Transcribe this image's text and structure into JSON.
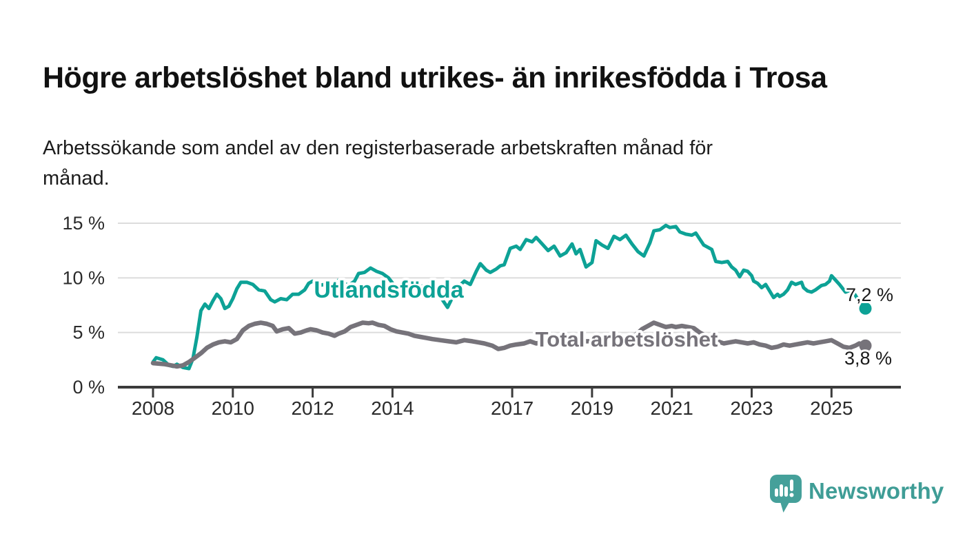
{
  "header": {
    "title": "Högre arbetslöshet bland utrikes- än inrikesfödda i Trosa",
    "subtitle": "Arbetssökande som andel av den registerbaserade arbetskraften månad för\nmånad."
  },
  "footer": {
    "brand": "Newsworthy",
    "brand_color": "#3f9d96",
    "logo_bubble_color": "#45a09a"
  },
  "chart_data": {
    "type": "line",
    "title": "Högre arbetslöshet bland utrikes- än inrikesfödda i Trosa",
    "xlabel": "",
    "ylabel": "Arbetssökande som andel av den registerbaserade arbetskraften",
    "ylim": [
      0,
      15
    ],
    "x_range": [
      2008.0,
      2025.85
    ],
    "grid": true,
    "legend_position": "inline-labels",
    "y_tick_suffix": " %",
    "y_ticks": [
      {
        "value": 0,
        "label": "0 %"
      },
      {
        "value": 5,
        "label": "5 %"
      },
      {
        "value": 10,
        "label": "10 %"
      },
      {
        "value": 15,
        "label": "15 %"
      }
    ],
    "x_ticks": [
      {
        "value": 2008,
        "label": "2008"
      },
      {
        "value": 2010,
        "label": "2010"
      },
      {
        "value": 2012,
        "label": "2012"
      },
      {
        "value": 2014,
        "label": "2014"
      },
      {
        "value": 2017,
        "label": "2017"
      },
      {
        "value": 2019,
        "label": "2019"
      },
      {
        "value": 2021,
        "label": "2021"
      },
      {
        "value": 2023,
        "label": "2023"
      },
      {
        "value": 2025,
        "label": "2025"
      }
    ],
    "series": [
      {
        "name": "Utlandsfödda",
        "color": "#0da296",
        "line_width": 5,
        "end_label": "7,2 %",
        "last_value": 7.2,
        "points": [
          [
            2008.0,
            2.3
          ],
          [
            2008.08,
            2.7
          ],
          [
            2008.25,
            2.5
          ],
          [
            2008.4,
            2.0
          ],
          [
            2008.5,
            1.9
          ],
          [
            2008.6,
            2.1
          ],
          [
            2008.75,
            1.8
          ],
          [
            2008.9,
            1.7
          ],
          [
            2009.0,
            2.6
          ],
          [
            2009.1,
            4.6
          ],
          [
            2009.2,
            7.0
          ],
          [
            2009.3,
            7.6
          ],
          [
            2009.4,
            7.2
          ],
          [
            2009.5,
            7.9
          ],
          [
            2009.6,
            8.5
          ],
          [
            2009.7,
            8.1
          ],
          [
            2009.8,
            7.2
          ],
          [
            2009.9,
            7.4
          ],
          [
            2010.0,
            8.1
          ],
          [
            2010.1,
            9.0
          ],
          [
            2010.2,
            9.6
          ],
          [
            2010.35,
            9.6
          ],
          [
            2010.5,
            9.4
          ],
          [
            2010.65,
            8.9
          ],
          [
            2010.8,
            8.8
          ],
          [
            2010.95,
            8.0
          ],
          [
            2011.05,
            7.8
          ],
          [
            2011.2,
            8.1
          ],
          [
            2011.35,
            8.0
          ],
          [
            2011.5,
            8.5
          ],
          [
            2011.65,
            8.5
          ],
          [
            2011.8,
            8.9
          ],
          [
            2011.9,
            9.5
          ],
          [
            2012.0,
            9.7
          ],
          [
            2012.15,
            9.3
          ],
          [
            2012.3,
            9.4
          ],
          [
            2012.45,
            8.9
          ],
          [
            2012.55,
            9.1
          ],
          [
            2012.65,
            9.8
          ],
          [
            2012.8,
            9.5
          ],
          [
            2012.9,
            9.3
          ],
          [
            2013.05,
            9.7
          ],
          [
            2013.15,
            10.4
          ],
          [
            2013.3,
            10.5
          ],
          [
            2013.45,
            10.9
          ],
          [
            2013.6,
            10.6
          ],
          [
            2013.75,
            10.4
          ],
          [
            2013.9,
            10.0
          ],
          [
            2014.05,
            9.3
          ],
          [
            2014.2,
            9.0
          ],
          [
            2014.35,
            9.2
          ],
          [
            2014.5,
            9.5
          ],
          [
            2014.65,
            9.1
          ],
          [
            2014.8,
            9.3
          ],
          [
            2014.95,
            9.5
          ],
          [
            2015.1,
            8.7
          ],
          [
            2015.25,
            8.0
          ],
          [
            2015.38,
            7.3
          ],
          [
            2015.5,
            8.2
          ],
          [
            2015.65,
            9.2
          ],
          [
            2015.8,
            9.7
          ],
          [
            2015.95,
            9.4
          ],
          [
            2016.1,
            10.6
          ],
          [
            2016.2,
            11.3
          ],
          [
            2016.35,
            10.7
          ],
          [
            2016.45,
            10.5
          ],
          [
            2016.6,
            10.8
          ],
          [
            2016.7,
            11.1
          ],
          [
            2016.8,
            11.2
          ],
          [
            2016.95,
            12.7
          ],
          [
            2017.1,
            12.9
          ],
          [
            2017.2,
            12.6
          ],
          [
            2017.35,
            13.5
          ],
          [
            2017.5,
            13.3
          ],
          [
            2017.6,
            13.7
          ],
          [
            2017.75,
            13.1
          ],
          [
            2017.9,
            12.5
          ],
          [
            2018.05,
            12.9
          ],
          [
            2018.2,
            12.0
          ],
          [
            2018.35,
            12.3
          ],
          [
            2018.5,
            13.1
          ],
          [
            2018.6,
            12.2
          ],
          [
            2018.7,
            12.6
          ],
          [
            2018.85,
            11.0
          ],
          [
            2019.0,
            11.4
          ],
          [
            2019.1,
            13.4
          ],
          [
            2019.25,
            13.0
          ],
          [
            2019.4,
            12.7
          ],
          [
            2019.55,
            13.8
          ],
          [
            2019.7,
            13.5
          ],
          [
            2019.85,
            13.9
          ],
          [
            2020.0,
            13.1
          ],
          [
            2020.15,
            12.4
          ],
          [
            2020.3,
            12.0
          ],
          [
            2020.45,
            13.2
          ],
          [
            2020.55,
            14.3
          ],
          [
            2020.7,
            14.4
          ],
          [
            2020.85,
            14.8
          ],
          [
            2020.95,
            14.6
          ],
          [
            2021.1,
            14.7
          ],
          [
            2021.2,
            14.2
          ],
          [
            2021.35,
            14.0
          ],
          [
            2021.5,
            13.9
          ],
          [
            2021.6,
            14.1
          ],
          [
            2021.8,
            13.0
          ],
          [
            2022.0,
            12.6
          ],
          [
            2022.1,
            11.5
          ],
          [
            2022.25,
            11.4
          ],
          [
            2022.4,
            11.5
          ],
          [
            2022.5,
            11.0
          ],
          [
            2022.6,
            10.7
          ],
          [
            2022.7,
            10.1
          ],
          [
            2022.8,
            10.7
          ],
          [
            2022.9,
            10.6
          ],
          [
            2023.0,
            10.2
          ],
          [
            2023.05,
            9.7
          ],
          [
            2023.15,
            9.5
          ],
          [
            2023.25,
            9.1
          ],
          [
            2023.35,
            9.4
          ],
          [
            2023.45,
            8.8
          ],
          [
            2023.55,
            8.2
          ],
          [
            2023.65,
            8.5
          ],
          [
            2023.7,
            8.3
          ],
          [
            2023.8,
            8.5
          ],
          [
            2023.9,
            8.9
          ],
          [
            2024.0,
            9.6
          ],
          [
            2024.1,
            9.4
          ],
          [
            2024.25,
            9.6
          ],
          [
            2024.3,
            9.1
          ],
          [
            2024.4,
            8.8
          ],
          [
            2024.5,
            8.7
          ],
          [
            2024.6,
            8.9
          ],
          [
            2024.75,
            9.3
          ],
          [
            2024.85,
            9.4
          ],
          [
            2024.95,
            9.7
          ],
          [
            2025.0,
            10.2
          ],
          [
            2025.1,
            9.8
          ],
          [
            2025.2,
            9.4
          ],
          [
            2025.35,
            8.7
          ],
          [
            2025.5,
            8.9
          ],
          [
            2025.6,
            8.4
          ],
          [
            2025.7,
            7.8
          ],
          [
            2025.85,
            7.2
          ]
        ]
      },
      {
        "name": "Total arbetslöshet",
        "color": "#76737a",
        "line_width": 6.5,
        "end_label": "3,8 %",
        "last_value": 3.8,
        "points": [
          [
            2008.0,
            2.2
          ],
          [
            2008.15,
            2.15
          ],
          [
            2008.3,
            2.1
          ],
          [
            2008.45,
            2.0
          ],
          [
            2008.6,
            1.9
          ],
          [
            2008.75,
            2.0
          ],
          [
            2008.9,
            2.3
          ],
          [
            2009.05,
            2.7
          ],
          [
            2009.2,
            3.1
          ],
          [
            2009.35,
            3.6
          ],
          [
            2009.5,
            3.9
          ],
          [
            2009.65,
            4.1
          ],
          [
            2009.8,
            4.2
          ],
          [
            2009.95,
            4.1
          ],
          [
            2010.1,
            4.4
          ],
          [
            2010.25,
            5.2
          ],
          [
            2010.4,
            5.6
          ],
          [
            2010.55,
            5.8
          ],
          [
            2010.7,
            5.9
          ],
          [
            2010.85,
            5.8
          ],
          [
            2011.0,
            5.6
          ],
          [
            2011.1,
            5.1
          ],
          [
            2011.25,
            5.3
          ],
          [
            2011.4,
            5.4
          ],
          [
            2011.55,
            4.9
          ],
          [
            2011.7,
            5.0
          ],
          [
            2011.85,
            5.2
          ],
          [
            2011.95,
            5.3
          ],
          [
            2012.1,
            5.2
          ],
          [
            2012.25,
            5.0
          ],
          [
            2012.4,
            4.9
          ],
          [
            2012.55,
            4.7
          ],
          [
            2012.65,
            4.9
          ],
          [
            2012.8,
            5.1
          ],
          [
            2012.95,
            5.5
          ],
          [
            2013.1,
            5.7
          ],
          [
            2013.25,
            5.9
          ],
          [
            2013.4,
            5.85
          ],
          [
            2013.5,
            5.9
          ],
          [
            2013.65,
            5.7
          ],
          [
            2013.8,
            5.6
          ],
          [
            2013.95,
            5.3
          ],
          [
            2014.1,
            5.1
          ],
          [
            2014.25,
            5.0
          ],
          [
            2014.4,
            4.9
          ],
          [
            2014.55,
            4.7
          ],
          [
            2014.7,
            4.6
          ],
          [
            2014.85,
            4.5
          ],
          [
            2015.0,
            4.4
          ],
          [
            2015.2,
            4.3
          ],
          [
            2015.4,
            4.2
          ],
          [
            2015.6,
            4.1
          ],
          [
            2015.8,
            4.3
          ],
          [
            2016.0,
            4.2
          ],
          [
            2016.15,
            4.1
          ],
          [
            2016.3,
            4.0
          ],
          [
            2016.5,
            3.8
          ],
          [
            2016.65,
            3.5
          ],
          [
            2016.8,
            3.6
          ],
          [
            2016.95,
            3.8
          ],
          [
            2017.1,
            3.9
          ],
          [
            2017.3,
            4.0
          ],
          [
            2017.45,
            4.2
          ],
          [
            2017.6,
            4.0
          ],
          [
            2017.75,
            4.1
          ],
          [
            2017.9,
            4.2
          ],
          [
            2018.05,
            4.1
          ],
          [
            2018.2,
            4.0
          ],
          [
            2018.4,
            4.2
          ],
          [
            2018.6,
            4.1
          ],
          [
            2018.8,
            4.2
          ],
          [
            2019.0,
            4.2
          ],
          [
            2019.2,
            4.3
          ],
          [
            2019.4,
            4.2
          ],
          [
            2019.6,
            4.3
          ],
          [
            2019.8,
            4.4
          ],
          [
            2019.95,
            4.5
          ],
          [
            2020.1,
            4.8
          ],
          [
            2020.25,
            5.3
          ],
          [
            2020.4,
            5.6
          ],
          [
            2020.55,
            5.9
          ],
          [
            2020.7,
            5.7
          ],
          [
            2020.85,
            5.5
          ],
          [
            2021.0,
            5.6
          ],
          [
            2021.1,
            5.5
          ],
          [
            2021.25,
            5.6
          ],
          [
            2021.4,
            5.5
          ],
          [
            2021.55,
            5.4
          ],
          [
            2021.7,
            5.0
          ],
          [
            2021.85,
            4.7
          ],
          [
            2022.0,
            4.4
          ],
          [
            2022.15,
            4.2
          ],
          [
            2022.3,
            4.0
          ],
          [
            2022.45,
            4.1
          ],
          [
            2022.6,
            4.2
          ],
          [
            2022.75,
            4.1
          ],
          [
            2022.9,
            4.0
          ],
          [
            2023.05,
            4.1
          ],
          [
            2023.2,
            3.9
          ],
          [
            2023.35,
            3.8
          ],
          [
            2023.5,
            3.6
          ],
          [
            2023.65,
            3.7
          ],
          [
            2023.8,
            3.9
          ],
          [
            2023.95,
            3.8
          ],
          [
            2024.1,
            3.9
          ],
          [
            2024.25,
            4.0
          ],
          [
            2024.4,
            4.1
          ],
          [
            2024.55,
            4.0
          ],
          [
            2024.7,
            4.1
          ],
          [
            2024.85,
            4.2
          ],
          [
            2025.0,
            4.3
          ],
          [
            2025.15,
            4.0
          ],
          [
            2025.3,
            3.7
          ],
          [
            2025.45,
            3.6
          ],
          [
            2025.6,
            3.8
          ],
          [
            2025.7,
            4.0
          ],
          [
            2025.85,
            3.8
          ]
        ]
      }
    ]
  }
}
